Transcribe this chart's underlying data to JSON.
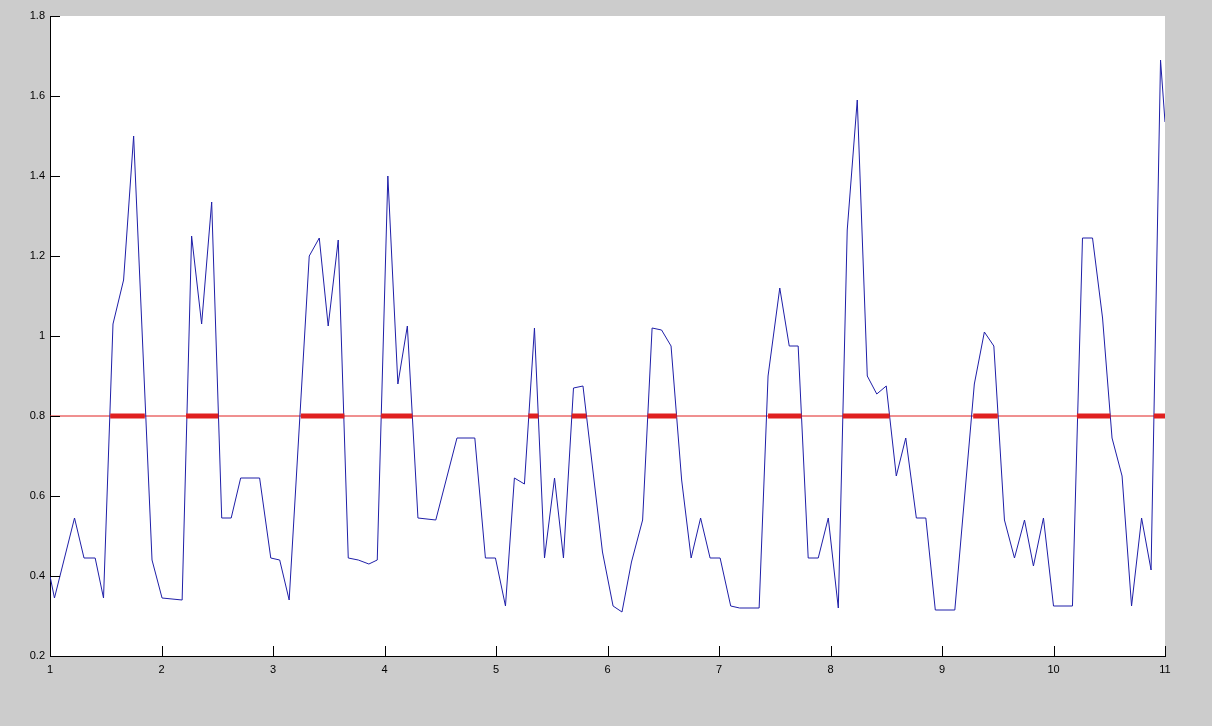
{
  "chart_data": {
    "type": "line",
    "xlim": [
      1,
      11
    ],
    "xticks": [
      1,
      2,
      3,
      4,
      5,
      6,
      7,
      8,
      9,
      10,
      11
    ],
    "ylim": [
      0.2,
      1.8
    ],
    "yticks": [
      0.2,
      0.4,
      0.6,
      0.8,
      1,
      1.2,
      1.4,
      1.6,
      1.8
    ],
    "ref_lines": [
      {
        "axis": "y",
        "value": 0.8,
        "color": "#e02020"
      }
    ],
    "series": [
      {
        "color": "#1f1fa8",
        "x": [
          1.0,
          1.04,
          1.22,
          1.305,
          1.405,
          1.48,
          1.565,
          1.66,
          1.75,
          1.915,
          2.005,
          2.185,
          2.27,
          2.36,
          2.45,
          2.54,
          2.625,
          2.71,
          2.88,
          2.98,
          3.06,
          3.145,
          3.325,
          3.415,
          3.495,
          3.585,
          3.675,
          3.765,
          3.86,
          3.935,
          4.03,
          4.12,
          4.205,
          4.3,
          4.46,
          4.65,
          4.81,
          4.905,
          4.995,
          5.085,
          5.165,
          5.255,
          5.345,
          5.435,
          5.525,
          5.605,
          5.695,
          5.78,
          5.955,
          6.05,
          6.13,
          6.215,
          6.315,
          6.4,
          6.485,
          6.57,
          6.665,
          6.75,
          6.835,
          6.92,
          7.01,
          7.105,
          7.185,
          7.36,
          7.44,
          7.545,
          7.63,
          7.71,
          7.8,
          7.89,
          7.98,
          8.07,
          8.15,
          8.24,
          8.33,
          8.415,
          8.5,
          8.59,
          8.675,
          8.77,
          8.855,
          8.94,
          9.115,
          9.29,
          9.38,
          9.465,
          9.56,
          9.65,
          9.74,
          9.82,
          9.91,
          10.0,
          10.17,
          10.26,
          10.35,
          10.44,
          10.525,
          10.615,
          10.7,
          10.79,
          10.875,
          10.96,
          11.0
        ],
        "values": [
          0.4,
          0.345,
          0.545,
          0.445,
          0.445,
          0.345,
          1.03,
          1.14,
          1.5,
          0.44,
          0.345,
          0.34,
          1.25,
          1.03,
          1.335,
          0.545,
          0.545,
          0.645,
          0.645,
          0.445,
          0.44,
          0.34,
          1.2,
          1.245,
          1.025,
          1.24,
          0.445,
          0.44,
          0.43,
          0.44,
          1.4,
          0.88,
          1.025,
          0.545,
          0.54,
          0.745,
          0.745,
          0.445,
          0.445,
          0.325,
          0.645,
          0.63,
          1.02,
          0.445,
          0.645,
          0.445,
          0.87,
          0.875,
          0.46,
          0.325,
          0.31,
          0.435,
          0.54,
          1.02,
          1.015,
          0.975,
          0.64,
          0.445,
          0.545,
          0.445,
          0.445,
          0.325,
          0.32,
          0.32,
          0.9,
          1.12,
          0.975,
          0.975,
          0.445,
          0.445,
          0.545,
          0.32,
          1.265,
          1.59,
          0.9,
          0.855,
          0.875,
          0.65,
          0.745,
          0.545,
          0.545,
          0.315,
          0.315,
          0.88,
          1.01,
          0.975,
          0.54,
          0.445,
          0.54,
          0.425,
          0.545,
          0.325,
          0.325,
          1.245,
          1.245,
          1.045,
          0.745,
          0.65,
          0.325,
          0.545,
          0.415,
          1.69,
          1.535
        ]
      },
      {
        "color": "#e02020",
        "x": [
          1.54,
          1.85,
          2.0,
          2.22,
          2.51,
          3.0,
          3.25,
          3.64,
          3.8,
          3.97,
          4.25,
          5.0,
          5.29,
          5.38,
          5.5,
          5.68,
          5.81,
          6.0,
          6.36,
          6.62,
          7.0,
          7.44,
          7.74,
          8.0,
          8.11,
          8.53,
          9.0,
          9.28,
          9.5,
          10.0,
          10.21,
          10.51,
          10.7,
          10.9,
          11.0
        ],
        "values": [
          0.8,
          0.8,
          null,
          0.8,
          0.8,
          null,
          0.8,
          0.8,
          null,
          0.8,
          0.8,
          null,
          0.8,
          0.8,
          null,
          0.8,
          0.8,
          null,
          0.8,
          0.8,
          null,
          0.8,
          0.8,
          null,
          0.8,
          0.8,
          null,
          0.8,
          0.8,
          null,
          0.8,
          0.8,
          null,
          0.8,
          0.8
        ]
      }
    ]
  }
}
